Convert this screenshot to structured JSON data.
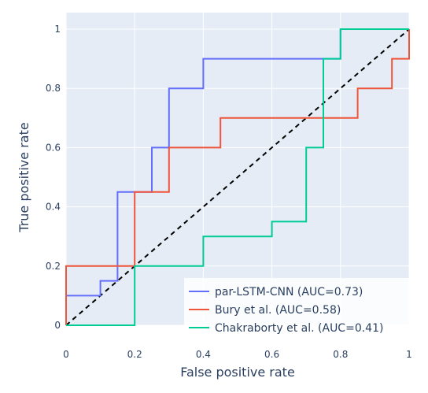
{
  "chart_data": {
    "type": "line",
    "xlabel": "False positive rate",
    "ylabel": "True positive rate",
    "xlim": [
      0,
      1
    ],
    "ylim": [
      0,
      1
    ],
    "x_ticks": [
      "0",
      "0.2",
      "0.4",
      "0.6",
      "0.8",
      "1"
    ],
    "y_ticks": [
      "0",
      "0.2",
      "0.4",
      "0.6",
      "0.8",
      "1"
    ],
    "grid": true,
    "legend_position": "bottom-right",
    "diagonal": {
      "style": "dashed",
      "color": "#000000",
      "points": [
        [
          0,
          0
        ],
        [
          1,
          1
        ]
      ]
    },
    "series": [
      {
        "name": "par-LSTM-CNN (AUC=0.73)",
        "color": "#636efa",
        "points": [
          [
            0,
            0
          ],
          [
            0,
            0.1
          ],
          [
            0.1,
            0.1
          ],
          [
            0.1,
            0.15
          ],
          [
            0.15,
            0.15
          ],
          [
            0.15,
            0.45
          ],
          [
            0.25,
            0.45
          ],
          [
            0.25,
            0.6
          ],
          [
            0.3,
            0.6
          ],
          [
            0.3,
            0.8
          ],
          [
            0.4,
            0.8
          ],
          [
            0.4,
            0.9
          ],
          [
            0.8,
            0.9
          ],
          [
            0.8,
            1
          ],
          [
            1,
            1
          ]
        ]
      },
      {
        "name": "Bury et al. (AUC=0.58)",
        "color": "#ef553b",
        "points": [
          [
            0,
            0
          ],
          [
            0,
            0.2
          ],
          [
            0.2,
            0.2
          ],
          [
            0.2,
            0.45
          ],
          [
            0.3,
            0.45
          ],
          [
            0.3,
            0.6
          ],
          [
            0.45,
            0.6
          ],
          [
            0.45,
            0.7
          ],
          [
            0.85,
            0.7
          ],
          [
            0.85,
            0.8
          ],
          [
            0.95,
            0.8
          ],
          [
            0.95,
            0.9
          ],
          [
            1,
            0.9
          ],
          [
            1,
            1
          ]
        ]
      },
      {
        "name": "Chakraborty et al. (AUC=0.41)",
        "color": "#00cc96",
        "points": [
          [
            0,
            0
          ],
          [
            0.2,
            0
          ],
          [
            0.2,
            0.2
          ],
          [
            0.4,
            0.2
          ],
          [
            0.4,
            0.3
          ],
          [
            0.6,
            0.3
          ],
          [
            0.6,
            0.35
          ],
          [
            0.7,
            0.35
          ],
          [
            0.7,
            0.6
          ],
          [
            0.75,
            0.6
          ],
          [
            0.75,
            0.9
          ],
          [
            0.8,
            0.9
          ],
          [
            0.8,
            1
          ],
          [
            1,
            1
          ]
        ]
      }
    ]
  }
}
